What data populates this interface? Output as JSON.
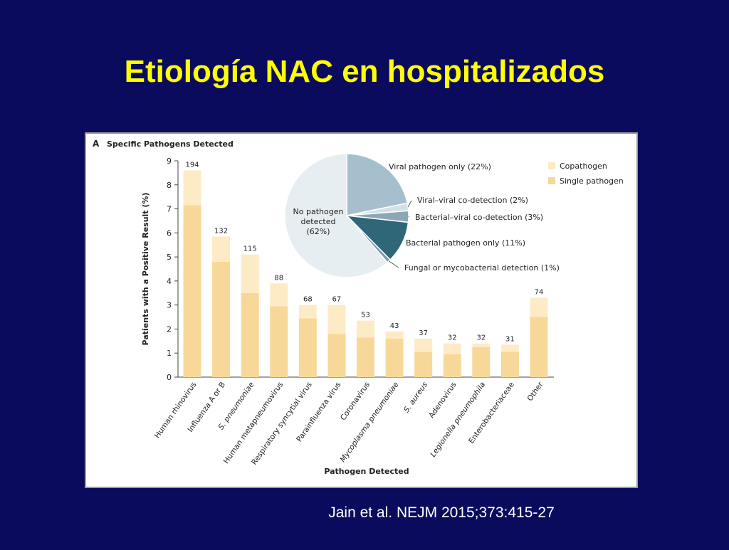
{
  "slide": {
    "title": "Etiología NAC en hospitalizados",
    "citation": "Jain et al. NEJM 2015;373:415-27"
  },
  "chart_data": [
    {
      "type": "bar",
      "stacked": true,
      "panel": "A",
      "title": "Specific Pathogens Detected",
      "xlabel": "Pathogen Detected",
      "ylabel": "Patients with a Positive Result (%)",
      "categories": [
        "Human rhinovirus",
        "Influenza A or B",
        "S. pneumoniae",
        "Human metapneumovirus",
        "Respiratory syncytial virus",
        "Parainfluenza virus",
        "Coronavirus",
        "Mycoplasma pneumoniae",
        "S. aureus",
        "Adenovirus",
        "Legionella pneumophila",
        "Enterobacteriaceae",
        "Other"
      ],
      "series": [
        {
          "name": "Single pathogen",
          "color": "#f8d898",
          "values": [
            7.15,
            4.8,
            3.5,
            2.95,
            2.45,
            1.8,
            1.65,
            1.6,
            1.05,
            0.95,
            1.25,
            1.05,
            2.5
          ]
        },
        {
          "name": "Copathogen",
          "color": "#fdebc6",
          "values": [
            1.45,
            1.05,
            1.6,
            0.95,
            0.55,
            1.2,
            0.7,
            0.3,
            0.55,
            0.45,
            0.15,
            0.3,
            0.8
          ]
        }
      ],
      "counts": [
        194,
        132,
        115,
        88,
        68,
        67,
        53,
        43,
        37,
        32,
        32,
        31,
        74
      ],
      "ylim": [
        0,
        9
      ],
      "yticks": [
        0,
        1,
        2,
        3,
        4,
        5,
        6,
        7,
        8,
        9
      ],
      "legend": "upper right"
    },
    {
      "type": "pie",
      "labels": [
        [
          "Viral pathogen only (22%)"
        ],
        [
          "Viral–viral co-detection (2%)"
        ],
        [
          "Bacterial–viral co-detection (3%)"
        ],
        [
          "Bacterial pathogen only (11%)"
        ],
        [
          "Fungal or mycobacterial detection (1%)"
        ],
        [
          "No pathogen",
          "detected",
          "(62%)"
        ]
      ],
      "values": [
        22,
        2,
        3,
        11,
        1,
        62
      ],
      "colors": [
        "#a6bfcc",
        "#d3e0e6",
        "#8ca8b7",
        "#2f6678",
        "#7c98a6",
        "#e6eef2"
      ]
    }
  ]
}
